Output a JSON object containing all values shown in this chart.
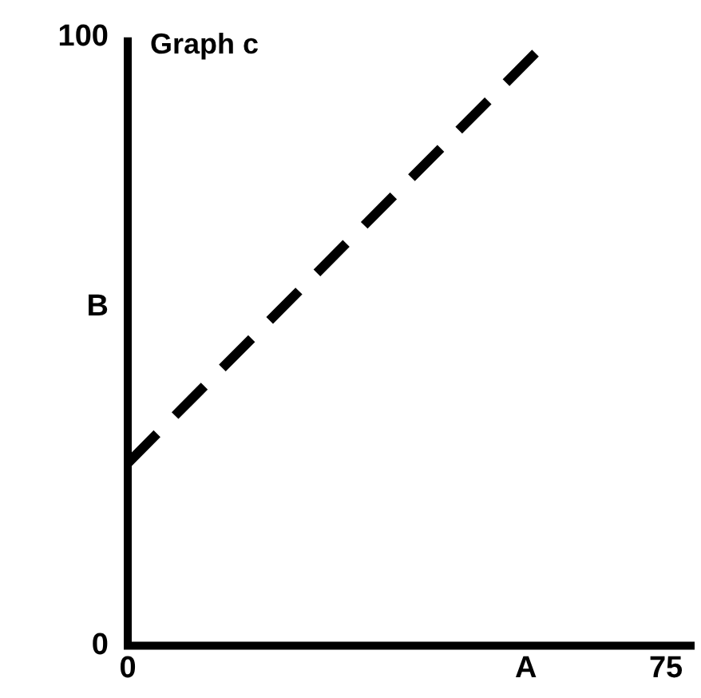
{
  "chart_data": {
    "type": "line",
    "title": "Graph c",
    "x": [
      0,
      59
    ],
    "series": [
      {
        "color": "#000000",
        "values": [
          30,
          100
        ]
      }
    ],
    "xlim": [
      0,
      79
    ],
    "xticks": [
      {
        "value": 0,
        "label": "0"
      },
      {
        "value": 55.5,
        "label": "A"
      },
      75
    ],
    "ylim": [
      0,
      100
    ],
    "yticks": [
      0,
      {
        "value": 55.6,
        "label": "B"
      },
      100
    ],
    "line_style": "dashed",
    "marker": "none",
    "grid": false,
    "legend": false
  }
}
